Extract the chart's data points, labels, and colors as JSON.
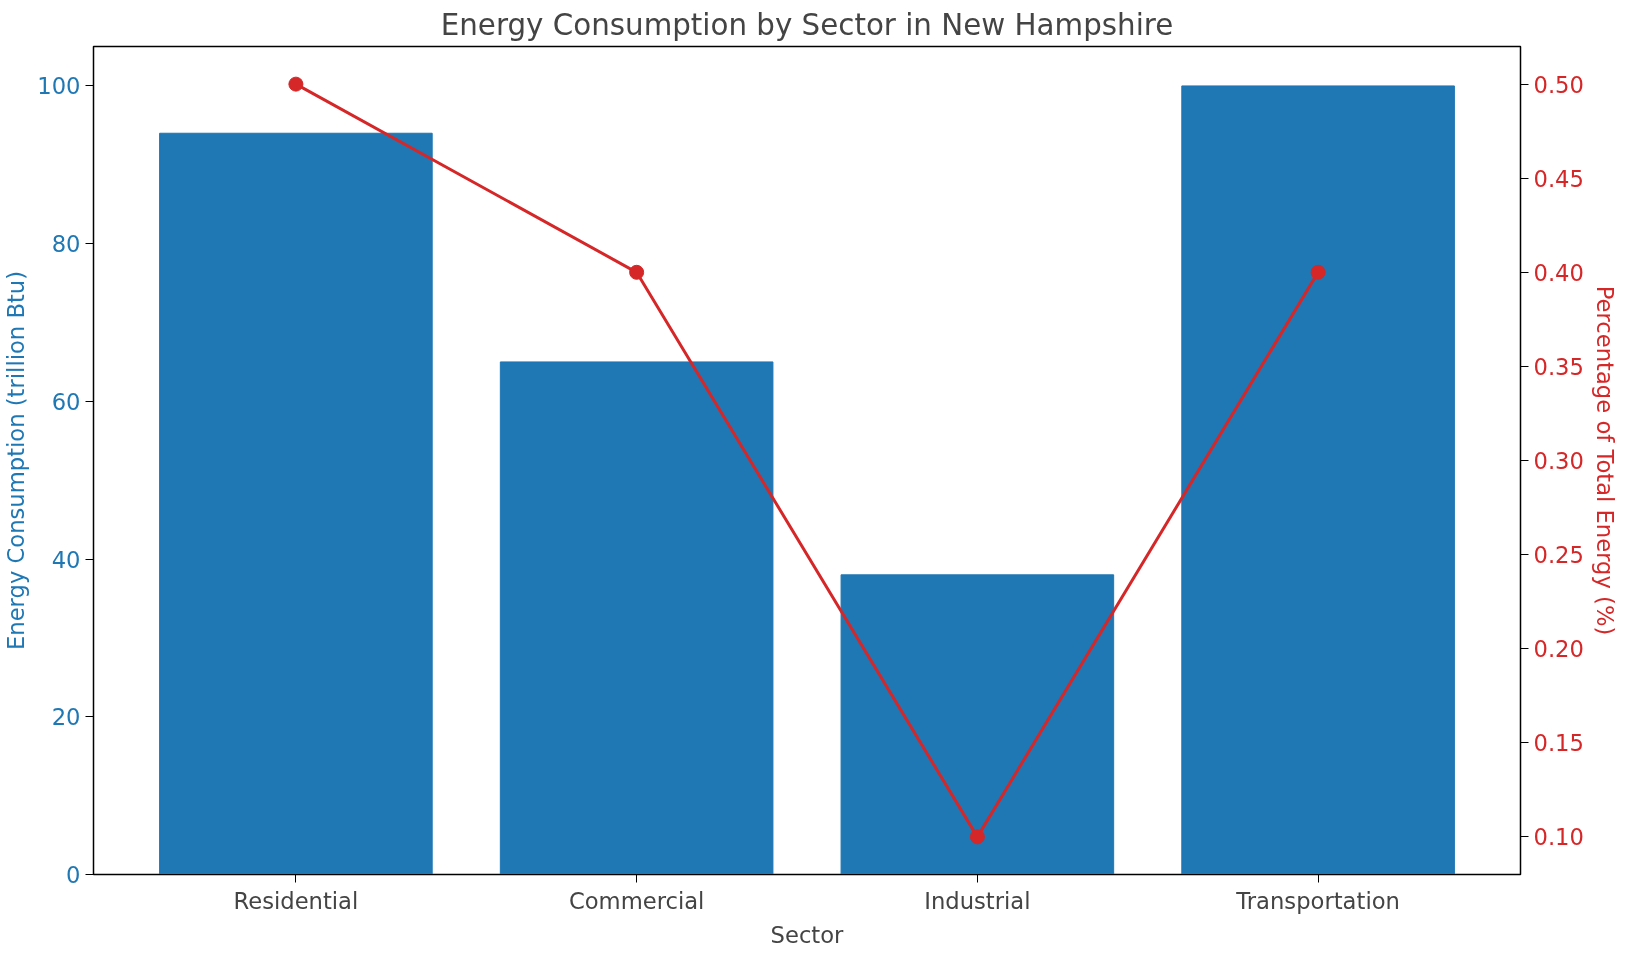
{
  "chart_data": {
    "type": "bar",
    "title": "Energy Consumption by Sector in New Hampshire",
    "xlabel": "Sector",
    "ylabel": "Energy Consumption (trillion Btu)",
    "y2label": "Percentage of Total Energy (%)",
    "categories": [
      "Residential",
      "Commercial",
      "Industrial",
      "Transportation"
    ],
    "series": [
      {
        "color": "#1f77b4",
        "values": [
          94,
          65,
          38,
          100
        ]
      },
      {
        "type": "line",
        "axis": "y2",
        "color": "#d62728",
        "marker": "circle",
        "values": [
          0.5,
          0.4,
          0.1,
          0.4
        ]
      }
    ],
    "ylim": [
      0,
      105
    ],
    "yticks": [
      0,
      20,
      40,
      60,
      80,
      100
    ],
    "y2lim": [
      0.08,
      0.52
    ],
    "y2ticks": [
      {
        "value": 0.1,
        "label": "0.10"
      },
      {
        "value": 0.15,
        "label": "0.15"
      },
      {
        "value": 0.2,
        "label": "0.20"
      },
      {
        "value": 0.25,
        "label": "0.25"
      },
      {
        "value": 0.3,
        "label": "0.30"
      },
      {
        "value": 0.35,
        "label": "0.35"
      },
      {
        "value": 0.4,
        "label": "0.40"
      },
      {
        "value": 0.45,
        "label": "0.45"
      },
      {
        "value": 0.5,
        "label": "0.50"
      }
    ],
    "grid": false
  }
}
